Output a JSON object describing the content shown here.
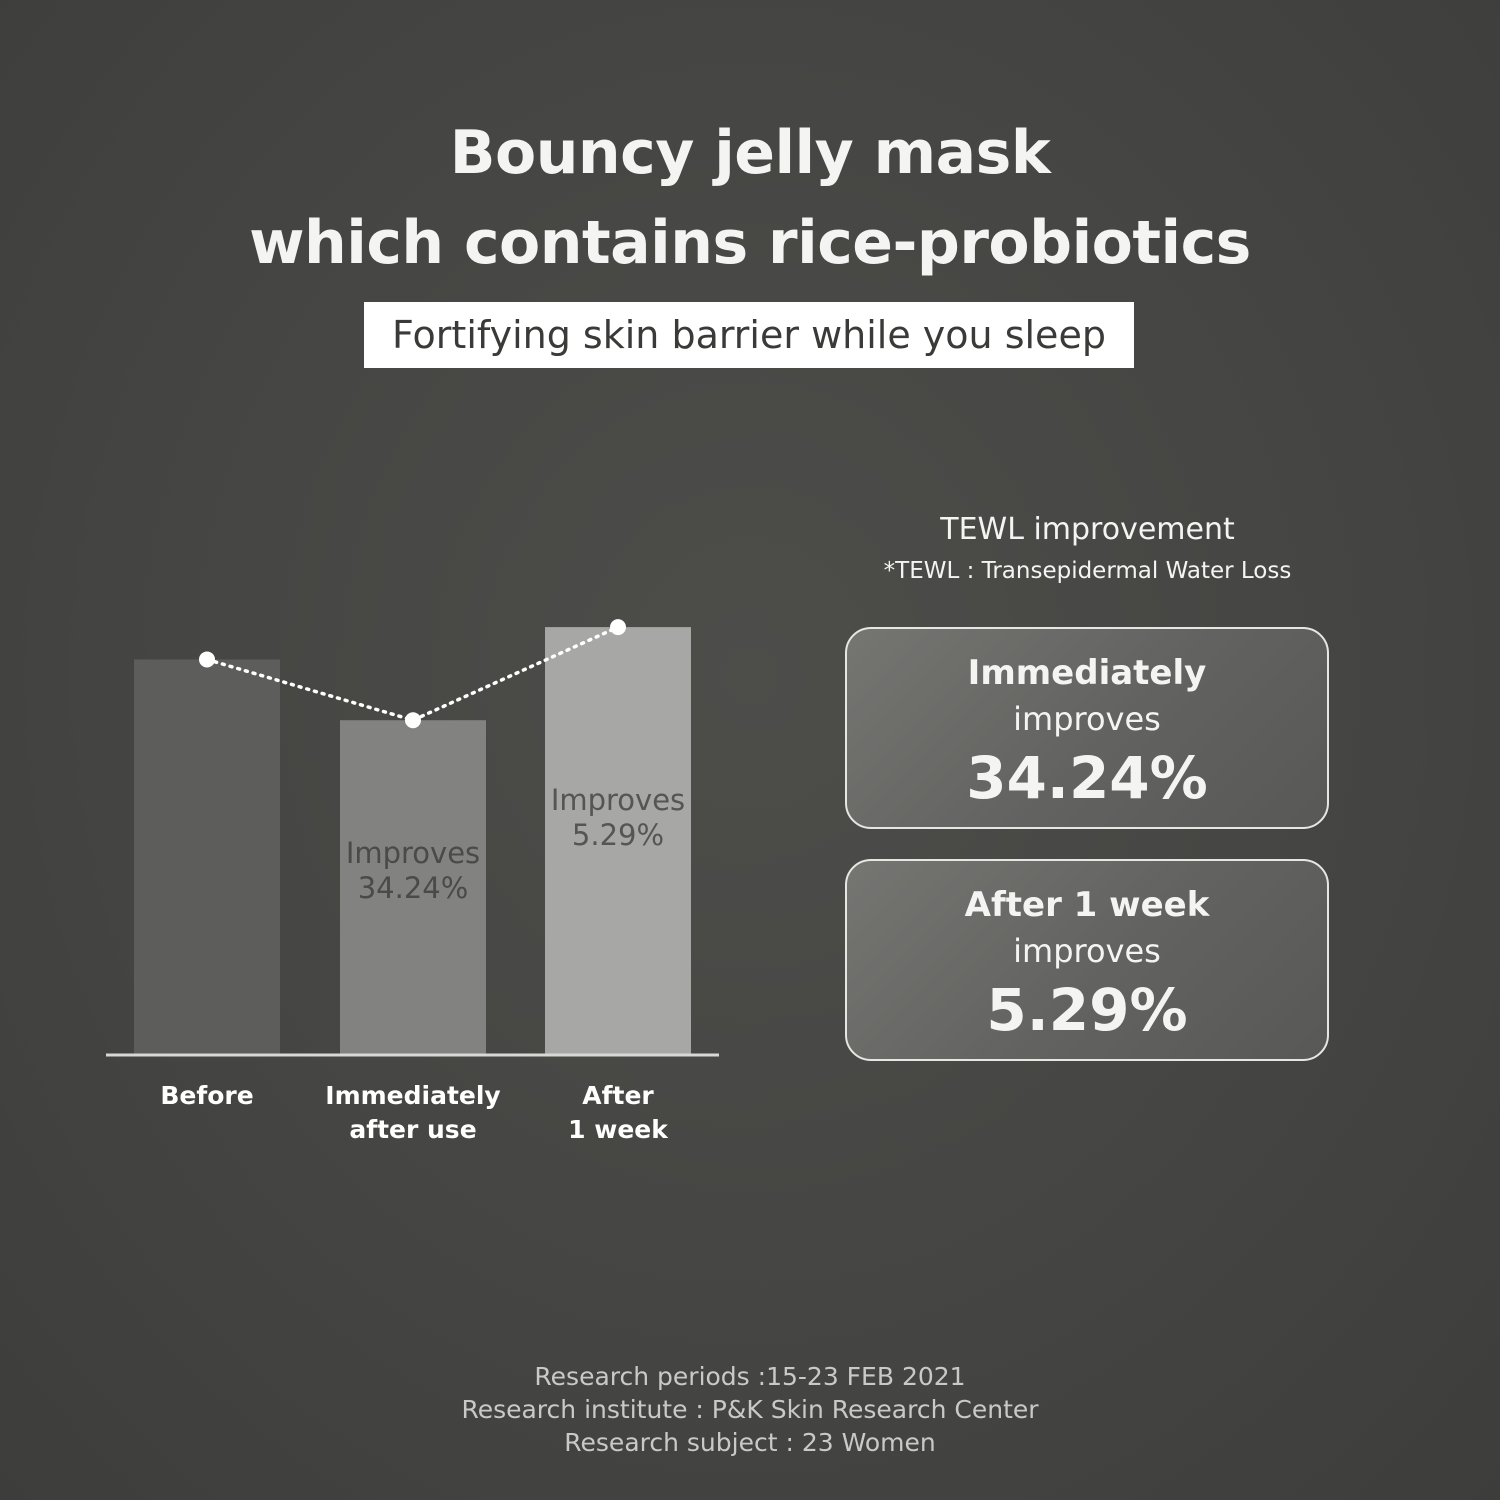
{
  "heading": {
    "line1": "Bouncy jelly mask",
    "line2": "which contains rice-probiotics",
    "subtitle": "Fortifying skin barrier while you sleep"
  },
  "chart_data": {
    "type": "bar",
    "categories": [
      {
        "line1": "Before",
        "line2": ""
      },
      {
        "line1": "Immediately",
        "line2": "after use"
      },
      {
        "line1": "After",
        "line2": "1 week"
      }
    ],
    "values": [
      100,
      84.6,
      108.2
    ],
    "bar_labels": [
      {
        "line1": "",
        "line2": ""
      },
      {
        "line1": "Improves",
        "line2": "34.24%"
      },
      {
        "line1": "Improves",
        "line2": "5.29%"
      }
    ],
    "bar_colors": [
      "#5d5d5b",
      "#828280",
      "#a7a7a5"
    ],
    "line_overlay": "dotted",
    "ylim": [
      0,
      110
    ],
    "grid": false,
    "legend": "none"
  },
  "tewl": {
    "title": "TEWL improvement",
    "note": "*TEWL : Transepidermal Water Loss",
    "cards": [
      {
        "line1": "Immediately",
        "line2": "improves",
        "value": "34.24%"
      },
      {
        "line1": "After 1 week",
        "line2": "improves",
        "value": "5.29%"
      }
    ]
  },
  "footer": {
    "period": "Research periods :15-23 FEB 2021",
    "institute": "Research institute : P&K Skin Research Center",
    "subject": "Research subject : 23 Women"
  }
}
